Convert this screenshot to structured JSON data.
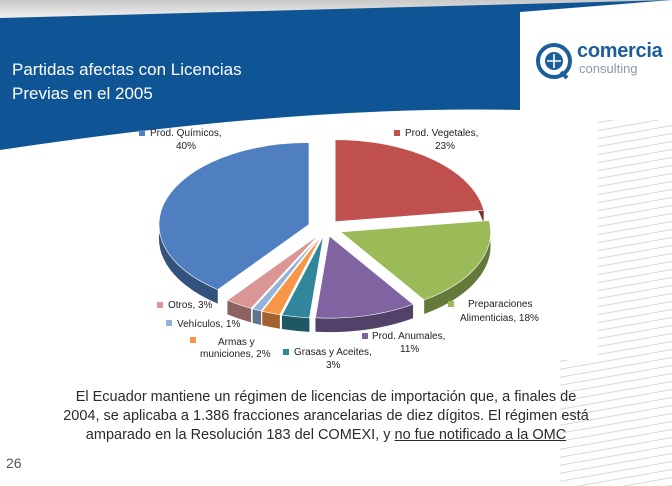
{
  "header": {
    "title_line1": "Partidas afectas con Licencias",
    "title_line2": "Previas en el 2005"
  },
  "logo": {
    "word": "comercia",
    "sub": "consulting"
  },
  "chart_data": {
    "type": "pie",
    "title": "",
    "slices": [
      {
        "label": "Prod. Químicos,",
        "pct_label": "40%",
        "value": 40,
        "color": "#4f7fc0"
      },
      {
        "label": "Prod. Vegetales,",
        "pct_label": "23%",
        "value": 23,
        "color": "#c0504d"
      },
      {
        "label": "Preparaciones",
        "label2": "Alimenticias, 18%",
        "value": 18,
        "color": "#9bbb59"
      },
      {
        "label": "Prod. Anumales,",
        "pct_label": "11%",
        "value": 11,
        "color": "#8064a2"
      },
      {
        "label": "Grasas y Aceites,",
        "pct_label": "3%",
        "value": 3,
        "color": "#31869b"
      },
      {
        "label": "Armas y",
        "label2": "municiones, 2%",
        "value": 2,
        "color": "#f79646"
      },
      {
        "label": "Vehículos, 1%",
        "value": 1,
        "color": "#95b3d7"
      },
      {
        "label": "Otros, 3%",
        "value": 3,
        "color": "#d99694"
      }
    ],
    "legend": "around-chart"
  },
  "body": {
    "line1": "El Ecuador mantiene un régimen de licencias de importación que, a finales de",
    "line2": "2004, se aplicaba a 1.386 fracciones arancelarias de diez dígitos. El régimen está",
    "line3_prefix": "amparado en la Resolución 183 del COMEXI, y ",
    "line3_underlined": "no fue notificado a la OMC"
  },
  "footer": {
    "page_number": "26"
  },
  "colors": {
    "header_blue": "#0f5596",
    "accent_grey": "#b7b7b7"
  }
}
